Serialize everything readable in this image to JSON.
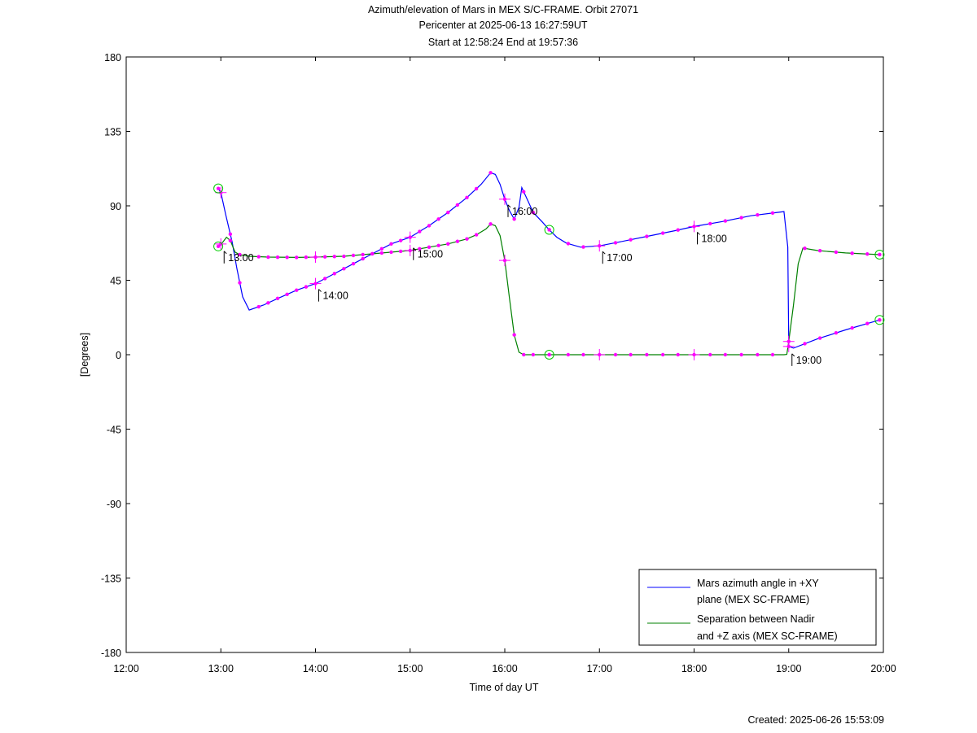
{
  "chart_data": {
    "type": "line",
    "title_lines": [
      "Azimuth/elevation of Mars in MEX S/C-FRAME.  Orbit 27071",
      "Pericenter at 2025-06-13 16:27:59UT",
      "Start at 12:58:24 End at 19:57:36"
    ],
    "xlabel": "Time of day UT",
    "ylabel": "[Degrees]",
    "xlim": [
      12.0,
      20.0
    ],
    "ylim": [
      -180,
      180
    ],
    "x_ticks": [
      "12:00",
      "13:00",
      "14:00",
      "15:00",
      "16:00",
      "17:00",
      "18:00",
      "19:00",
      "20:00"
    ],
    "y_ticks": [
      "180",
      "135",
      "90",
      "45",
      "0",
      "-45",
      "-90",
      "-135",
      "-180"
    ],
    "grid": false,
    "legend_position": "bottom-right",
    "series": [
      {
        "name": "Mars azimuth angle in +XY plane (MEX SC-FRAME)",
        "legend_lines": [
          "Mars azimuth angle in +XY",
          "plane (MEX SC-FRAME)"
        ],
        "color": "#0000ff",
        "x": [
          12.973,
          13.0,
          13.05,
          13.12,
          13.17,
          13.23,
          13.3,
          13.45,
          13.6,
          13.8,
          14.0,
          14.2,
          14.4,
          14.6,
          14.8,
          15.0,
          15.2,
          15.4,
          15.6,
          15.75,
          15.85,
          15.9,
          15.95,
          16.0,
          16.05,
          16.1,
          16.15,
          16.18,
          16.22,
          16.3,
          16.4,
          16.47,
          16.55,
          16.65,
          16.8,
          17.0,
          17.2,
          17.5,
          17.8,
          18.0,
          18.3,
          18.6,
          18.95,
          18.99,
          19.0,
          19.05,
          19.3,
          19.6,
          19.96
        ],
        "y": [
          100.5,
          98.0,
          85.0,
          68.0,
          52.0,
          35.0,
          27.0,
          30.0,
          34.0,
          39.0,
          43.0,
          49.0,
          55.0,
          61.0,
          67.0,
          71.0,
          78.0,
          86.0,
          95.0,
          103.0,
          110.0,
          109.0,
          103.0,
          94.0,
          87.0,
          82.0,
          89.0,
          101.0,
          96.0,
          86.0,
          80.0,
          75.5,
          71.0,
          67.5,
          65.0,
          65.8,
          68.0,
          71.5,
          75.0,
          77.5,
          80.5,
          84.0,
          86.5,
          65.0,
          5.0,
          4.0,
          9.5,
          15.0,
          21.0
        ]
      },
      {
        "name": "Separation between Nadir and +Z axis (MEX SC-FRAME)",
        "legend_lines": [
          "Separation between Nadir",
          "and +Z axis (MEX SC-FRAME)"
        ],
        "color": "#008000",
        "x": [
          12.973,
          13.02,
          13.06,
          13.1,
          13.15,
          13.2,
          13.3,
          13.5,
          13.8,
          14.0,
          14.3,
          14.6,
          15.0,
          15.2,
          15.4,
          15.6,
          15.7,
          15.8,
          15.85,
          15.9,
          15.95,
          16.0,
          16.05,
          16.1,
          16.15,
          16.2,
          16.3,
          16.47,
          17.0,
          17.5,
          18.0,
          18.5,
          18.95,
          18.98,
          19.0,
          19.05,
          19.1,
          19.15,
          19.3,
          19.6,
          19.96
        ],
        "y": [
          65.5,
          68.0,
          71.0,
          69.0,
          62.0,
          60.5,
          59.5,
          59.0,
          58.8,
          59.0,
          59.5,
          61.0,
          63.0,
          65.0,
          67.0,
          70.0,
          72.5,
          76.0,
          79.0,
          78.0,
          72.0,
          57.0,
          34.0,
          12.0,
          1.5,
          0.0,
          0.0,
          0.0,
          0.0,
          0.0,
          0.0,
          0.0,
          0.0,
          0.2,
          8.0,
          30.0,
          55.0,
          64.5,
          63.0,
          61.5,
          60.5
        ]
      }
    ],
    "marker_color": "#ff00ff",
    "marker_times": [
      13.0,
      13.1,
      13.2,
      13.4,
      13.5,
      13.6,
      13.7,
      13.8,
      13.9,
      14.0,
      14.1,
      14.2,
      14.3,
      14.4,
      14.5,
      14.6,
      14.7,
      14.8,
      14.9,
      15.0,
      15.1,
      15.2,
      15.3,
      15.4,
      15.5,
      15.6,
      15.7,
      15.85,
      16.0,
      16.1,
      16.2,
      16.3,
      16.47,
      16.67,
      16.83,
      17.0,
      17.17,
      17.33,
      17.5,
      17.67,
      17.83,
      18.0,
      18.17,
      18.33,
      18.5,
      18.67,
      18.83,
      19.0,
      19.17,
      19.33,
      19.5,
      19.67,
      19.83,
      19.96
    ],
    "hour_crosses": [
      {
        "series": 0,
        "x": 13.0
      },
      {
        "series": 1,
        "x": 13.0
      },
      {
        "series": 0,
        "x": 14.0
      },
      {
        "series": 1,
        "x": 14.0
      },
      {
        "series": 0,
        "x": 15.0
      },
      {
        "series": 1,
        "x": 15.0
      },
      {
        "series": 0,
        "x": 16.0
      },
      {
        "series": 1,
        "x": 16.0
      },
      {
        "series": 0,
        "x": 17.0
      },
      {
        "series": 1,
        "x": 17.0
      },
      {
        "series": 0,
        "x": 18.0
      },
      {
        "series": 1,
        "x": 18.0
      },
      {
        "series": 0,
        "x": 19.0
      },
      {
        "series": 1,
        "x": 19.0
      }
    ],
    "circle_markers": [
      {
        "series": 0,
        "x": 12.973
      },
      {
        "series": 1,
        "x": 12.973
      },
      {
        "series": 0,
        "x": 16.47
      },
      {
        "series": 1,
        "x": 16.47
      },
      {
        "series": 0,
        "x": 19.96
      },
      {
        "series": 1,
        "x": 19.96
      }
    ],
    "time_annotations": [
      {
        "label": "13:00",
        "x": 13.0,
        "y": 66.0
      },
      {
        "label": "14:00",
        "x": 14.0,
        "y": 43.0
      },
      {
        "label": "15:00",
        "x": 15.0,
        "y": 68.0
      },
      {
        "label": "16:00",
        "x": 16.0,
        "y": 94.0
      },
      {
        "label": "17:00",
        "x": 17.0,
        "y": 65.8
      },
      {
        "label": "18:00",
        "x": 18.0,
        "y": 77.5
      },
      {
        "label": "19:00",
        "x": 19.0,
        "y": 4.0
      }
    ]
  },
  "footer": {
    "created": "Created: 2025-06-26 15:53:09"
  }
}
